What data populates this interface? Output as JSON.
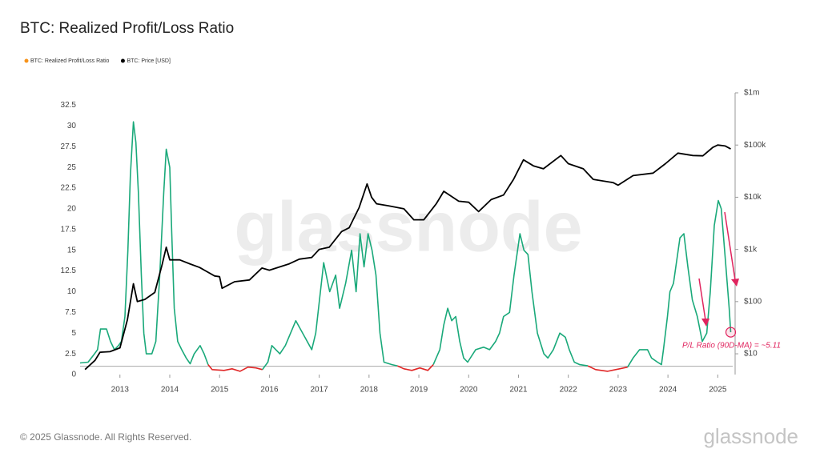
{
  "chart_data": {
    "type": "line",
    "title": "BTC: Realized Profit/Loss Ratio",
    "series": [
      {
        "name": "BTC: Realized Profit/Loss Ratio",
        "color": "#1aa97a",
        "below_color": "#e02626",
        "legend_color": "#f7931a",
        "x": [
          2012.2,
          2012.36,
          2012.49,
          2012.55,
          2012.61,
          2012.73,
          2012.81,
          2012.89,
          2012.97,
          2013.03,
          2013.1,
          2013.16,
          2013.21,
          2013.27,
          2013.32,
          2013.37,
          2013.43,
          2013.48,
          2013.53,
          2013.64,
          2013.72,
          2013.8,
          2013.88,
          2013.93,
          2014.0,
          2014.04,
          2014.09,
          2014.16,
          2014.24,
          2014.33,
          2014.41,
          2014.49,
          2014.61,
          2014.69,
          2014.77,
          2014.85,
          2015.09,
          2015.25,
          2015.41,
          2015.57,
          2015.73,
          2015.86,
          2015.97,
          2016.05,
          2016.21,
          2016.32,
          2016.53,
          2016.85,
          2016.93,
          2017.09,
          2017.21,
          2017.33,
          2017.41,
          2017.53,
          2017.65,
          2017.74,
          2017.82,
          2017.9,
          2017.98,
          2018.06,
          2018.14,
          2018.22,
          2018.3,
          2018.46,
          2018.57,
          2018.7,
          2018.86,
          2019.02,
          2019.18,
          2019.29,
          2019.42,
          2019.5,
          2019.58,
          2019.66,
          2019.74,
          2019.82,
          2019.9,
          2019.98,
          2020.14,
          2020.3,
          2020.42,
          2020.54,
          2020.62,
          2020.7,
          2020.82,
          2020.91,
          2021.03,
          2021.11,
          2021.19,
          2021.27,
          2021.38,
          2021.51,
          2021.59,
          2021.7,
          2021.83,
          2021.94,
          2022.02,
          2022.12,
          2022.23,
          2022.39,
          2022.55,
          2022.79,
          2023.03,
          2023.19,
          2023.3,
          2023.43,
          2023.59,
          2023.67,
          2023.79,
          2023.87,
          2023.91,
          2023.99,
          2024.04,
          2024.11,
          2024.24,
          2024.32,
          2024.4,
          2024.49,
          2024.59,
          2024.69,
          2024.78,
          2024.85,
          2024.93,
          2025.01,
          2025.07,
          2025.15,
          2025.23,
          2025.26
        ],
        "values": [
          1.4,
          1.5,
          2.5,
          3,
          5.5,
          5.5,
          4,
          3,
          3.5,
          4,
          7,
          15,
          24,
          30.5,
          28,
          22,
          12,
          5,
          2.5,
          2.5,
          4,
          12,
          22,
          27.2,
          25,
          17,
          8,
          4,
          3,
          2,
          1.3,
          2.5,
          3.5,
          2.5,
          1.2,
          0.6,
          0.5,
          0.7,
          0.4,
          0.9,
          0.8,
          0.6,
          1.5,
          3.5,
          2.5,
          3.5,
          6.5,
          3,
          5,
          13.5,
          10,
          12,
          8,
          11,
          15,
          10,
          17,
          13,
          17,
          15,
          12,
          5,
          1.5,
          1.2,
          1.05,
          0.7,
          0.5,
          0.8,
          0.5,
          1.2,
          3,
          6,
          8,
          6.5,
          7,
          4,
          2,
          1.5,
          3,
          3.3,
          3,
          4,
          5,
          7,
          7.5,
          12,
          17,
          15,
          14.5,
          10,
          5,
          2.5,
          2,
          3,
          5,
          4.5,
          3,
          1.5,
          1.2,
          1.05,
          0.6,
          0.4,
          0.7,
          0.9,
          2,
          3,
          3,
          2,
          1.5,
          1.2,
          3,
          7,
          10,
          11,
          16.5,
          17,
          13,
          9,
          7,
          4,
          5,
          10,
          18,
          21,
          20,
          14,
          8,
          5.11
        ]
      },
      {
        "name": "BTC: Price [USD]",
        "color": "#000000",
        "axis": "y2",
        "x": [
          2012.3,
          2012.5,
          2012.6,
          2012.8,
          2013.0,
          2013.15,
          2013.27,
          2013.35,
          2013.5,
          2013.7,
          2013.85,
          2013.93,
          2014.0,
          2014.2,
          2014.4,
          2014.6,
          2014.9,
          2015.0,
          2015.05,
          2015.3,
          2015.6,
          2015.85,
          2016.0,
          2016.4,
          2016.6,
          2016.85,
          2017.0,
          2017.2,
          2017.45,
          2017.6,
          2017.8,
          2017.96,
          2018.05,
          2018.15,
          2018.4,
          2018.7,
          2018.9,
          2019.1,
          2019.35,
          2019.5,
          2019.8,
          2020.0,
          2020.2,
          2020.45,
          2020.7,
          2020.9,
          2021.1,
          2021.3,
          2021.5,
          2021.85,
          2022.0,
          2022.3,
          2022.5,
          2022.9,
          2023.0,
          2023.3,
          2023.7,
          2023.95,
          2024.2,
          2024.5,
          2024.7,
          2024.9,
          2025.0,
          2025.15,
          2025.26
        ],
        "values": [
          5,
          7.5,
          10.7,
          11,
          13,
          45,
          220,
          100,
          110,
          150,
          530,
          1100,
          630,
          630,
          530,
          450,
          310,
          300,
          180,
          240,
          260,
          440,
          400,
          530,
          650,
          700,
          1000,
          1100,
          2200,
          2600,
          6300,
          18000,
          10000,
          7500,
          6800,
          6000,
          3700,
          3700,
          7500,
          13000,
          8400,
          8000,
          5300,
          9000,
          11000,
          22000,
          52000,
          40000,
          35000,
          63000,
          44000,
          35000,
          22000,
          19000,
          17000,
          26000,
          29000,
          44000,
          70000,
          63000,
          62000,
          90000,
          100000,
          96000,
          84000
        ]
      }
    ],
    "xlim": [
      2012.2,
      2025.3
    ],
    "xticks": [
      2013,
      2014,
      2015,
      2016,
      2017,
      2018,
      2019,
      2020,
      2021,
      2022,
      2023,
      2024,
      2025
    ],
    "ylim": [
      0,
      34
    ],
    "yticks": [
      0,
      2.5,
      5,
      7.5,
      10,
      12.5,
      15,
      17.5,
      20,
      22.5,
      25,
      27.5,
      30,
      32.5
    ],
    "y2lim": [
      4,
      1000000
    ],
    "y2_log": true,
    "y2ticks": [
      {
        "value": 10,
        "label": "$10"
      },
      {
        "value": 100,
        "label": "$100"
      },
      {
        "value": 1000,
        "label": "$1k"
      },
      {
        "value": 10000,
        "label": "$10k"
      },
      {
        "value": 100000,
        "label": "$100k"
      },
      {
        "value": 1000000,
        "label": "$1m"
      }
    ],
    "reference_line": 1,
    "annotation": "P/L Ratio (90D-MA) = ~5.11",
    "watermark": "glassnode",
    "footer": "© 2025 Glassnode. All Rights Reserved.",
    "logo": "glassnode"
  }
}
